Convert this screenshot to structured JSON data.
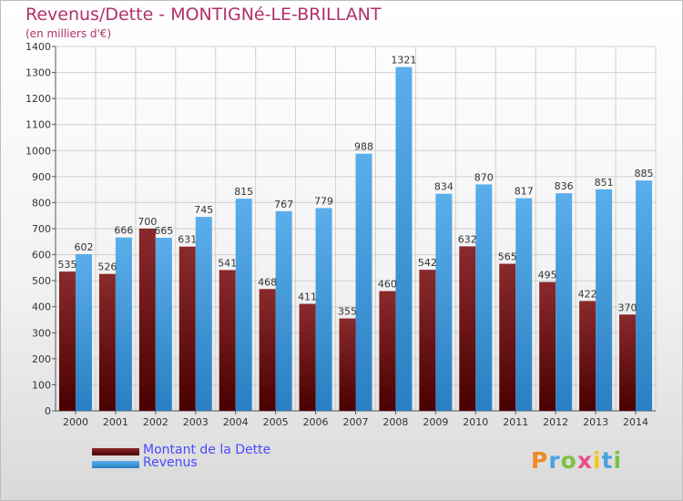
{
  "title": "Revenus/Dette - MONTIGNé-LE-BRILLANT",
  "subtitle": "(en milliers d'€)",
  "logo": {
    "text": "Proxiti"
  },
  "colors": {
    "dette": "#6a0f12",
    "revenus": "#3a8fd6"
  },
  "chart_data": {
    "type": "bar",
    "title": "Revenus/Dette - MONTIGNé-LE-BRILLANT",
    "ylabel": "(en milliers d'€)",
    "xlabel": "",
    "ylim": [
      0,
      1400
    ],
    "yticks": [
      0,
      100,
      200,
      300,
      400,
      500,
      600,
      700,
      800,
      900,
      1000,
      1100,
      1200,
      1300,
      1400
    ],
    "grid": true,
    "legend_position": "bottom-left",
    "categories": [
      "2000",
      "2001",
      "2002",
      "2003",
      "2004",
      "2005",
      "2006",
      "2007",
      "2008",
      "2009",
      "2010",
      "2011",
      "2012",
      "2013",
      "2014"
    ],
    "series": [
      {
        "name": "Montant de la Dette",
        "values": [
          535,
          526,
          700,
          631,
          541,
          468,
          411,
          355,
          460,
          542,
          632,
          565,
          495,
          422,
          370
        ]
      },
      {
        "name": "Revenus",
        "values": [
          602,
          666,
          665,
          745,
          815,
          767,
          779,
          988,
          1321,
          834,
          870,
          817,
          836,
          851,
          885
        ]
      }
    ]
  }
}
